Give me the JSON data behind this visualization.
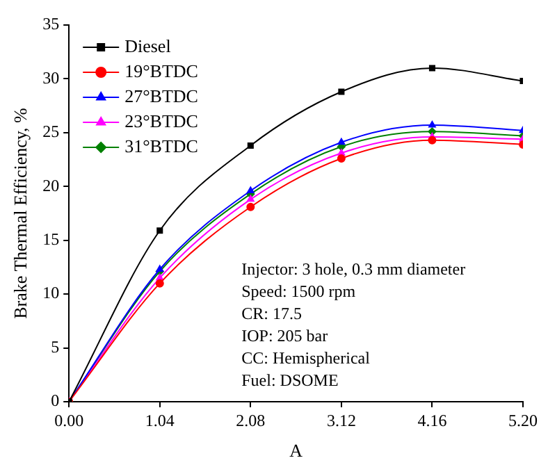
{
  "chart_data": {
    "type": "line",
    "xlabel": "A",
    "ylabel": "Brake Thermal Efficiency, %",
    "x": [
      0,
      1.04,
      2.08,
      3.12,
      4.16,
      5.2
    ],
    "xlim": [
      0,
      5.2
    ],
    "xticks": [
      {
        "value": 0,
        "label": "0.00"
      },
      {
        "value": 1.04,
        "label": "1.04"
      },
      {
        "value": 2.08,
        "label": "2.08"
      },
      {
        "value": 3.12,
        "label": "3.12"
      },
      {
        "value": 4.16,
        "label": "4.16"
      },
      {
        "value": 5.2,
        "label": "5.20"
      }
    ],
    "ylim": [
      0,
      35
    ],
    "yticks": [
      0,
      5,
      10,
      15,
      20,
      25,
      30,
      35
    ],
    "grid": false,
    "legend": "top left",
    "series": [
      {
        "name": "Diesel",
        "color": "#000000",
        "marker": "square",
        "values": [
          0,
          15.9,
          23.8,
          28.8,
          31.0,
          29.8
        ]
      },
      {
        "name": "19°BTDC",
        "color": "#ff0000",
        "marker": "circle",
        "values": [
          0,
          11.0,
          18.1,
          22.6,
          24.3,
          23.9
        ]
      },
      {
        "name": "27°BTDC",
        "color": "#0000ff",
        "marker": "triangle",
        "values": [
          0,
          12.3,
          19.6,
          24.1,
          25.7,
          25.2
        ]
      },
      {
        "name": "23°BTDC",
        "color": "#ff00ff",
        "marker": "triangle",
        "values": [
          0,
          11.5,
          18.8,
          23.1,
          24.6,
          24.4
        ]
      },
      {
        "name": "31°BTDC",
        "color": "#008000",
        "marker": "diamond",
        "values": [
          0,
          12.1,
          19.3,
          23.7,
          25.1,
          24.7
        ]
      }
    ],
    "annotations": [
      "Injector: 3 hole, 0.3 mm diameter",
      "Speed: 1500 rpm",
      "CR: 17.5",
      "IOP: 205 bar",
      "CC: Hemispherical",
      "Fuel: DSOME"
    ]
  }
}
